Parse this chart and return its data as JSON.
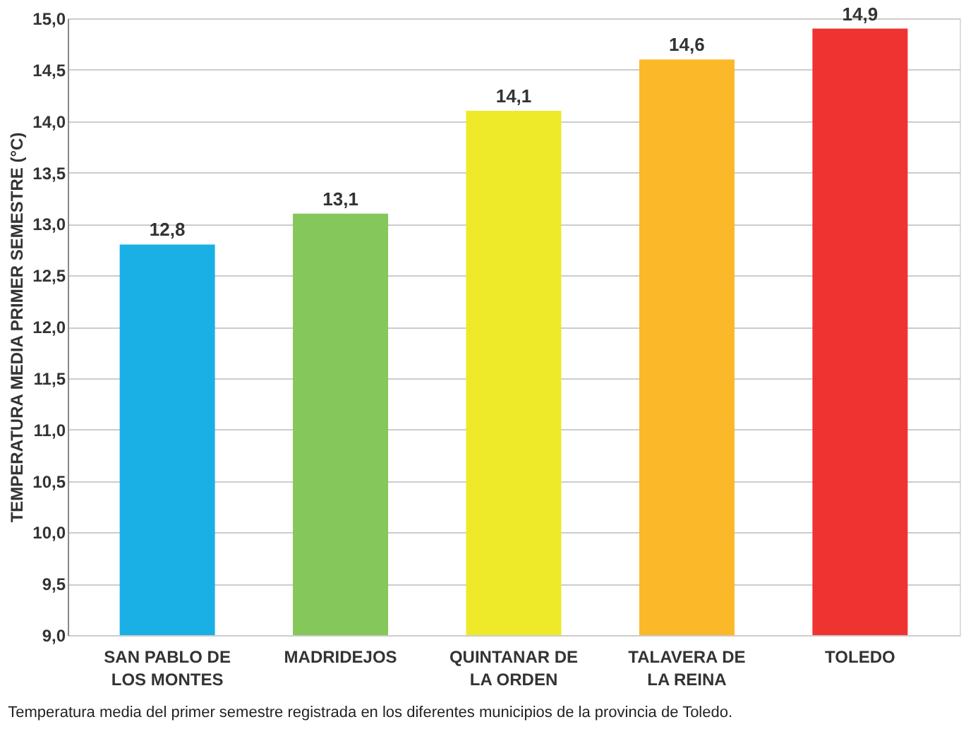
{
  "chart_data": {
    "type": "bar",
    "categories": [
      "SAN PABLO DE LOS MONTES",
      "MADRIDEJOS",
      "QUINTANAR DE LA ORDEN",
      "TALAVERA DE LA REINA",
      "TOLEDO"
    ],
    "values": [
      12.8,
      13.1,
      14.1,
      14.6,
      14.9
    ],
    "value_labels": [
      "12,8",
      "13,1",
      "14,1",
      "14,6",
      "14,9"
    ],
    "colors": [
      "#1ab0e6",
      "#85c75a",
      "#eeea2a",
      "#fbb829",
      "#ee3330"
    ],
    "ylabel": "TEMPERATURA MEDIA PRIMER SEMESTRE (°C)",
    "ylim": [
      9.0,
      15.0
    ],
    "yticks": [
      {
        "value": 9.0,
        "label": "9,0"
      },
      {
        "value": 9.5,
        "label": "9,5"
      },
      {
        "value": 10.0,
        "label": "10,0"
      },
      {
        "value": 10.5,
        "label": "10,5"
      },
      {
        "value": 11.0,
        "label": "11,0"
      },
      {
        "value": 11.5,
        "label": "11,5"
      },
      {
        "value": 12.0,
        "label": "12,0"
      },
      {
        "value": 12.5,
        "label": "12,5"
      },
      {
        "value": 13.0,
        "label": "13,0"
      },
      {
        "value": 13.5,
        "label": "13,5"
      },
      {
        "value": 14.0,
        "label": "14,0"
      },
      {
        "value": 14.5,
        "label": "14,5"
      },
      {
        "value": 15.0,
        "label": "15,0"
      }
    ],
    "grid": "y",
    "data_labels": true,
    "annotations": [
      "Temperatura media del primer semestre registrada en los diferentes municipios de la provincia de Toledo."
    ]
  }
}
